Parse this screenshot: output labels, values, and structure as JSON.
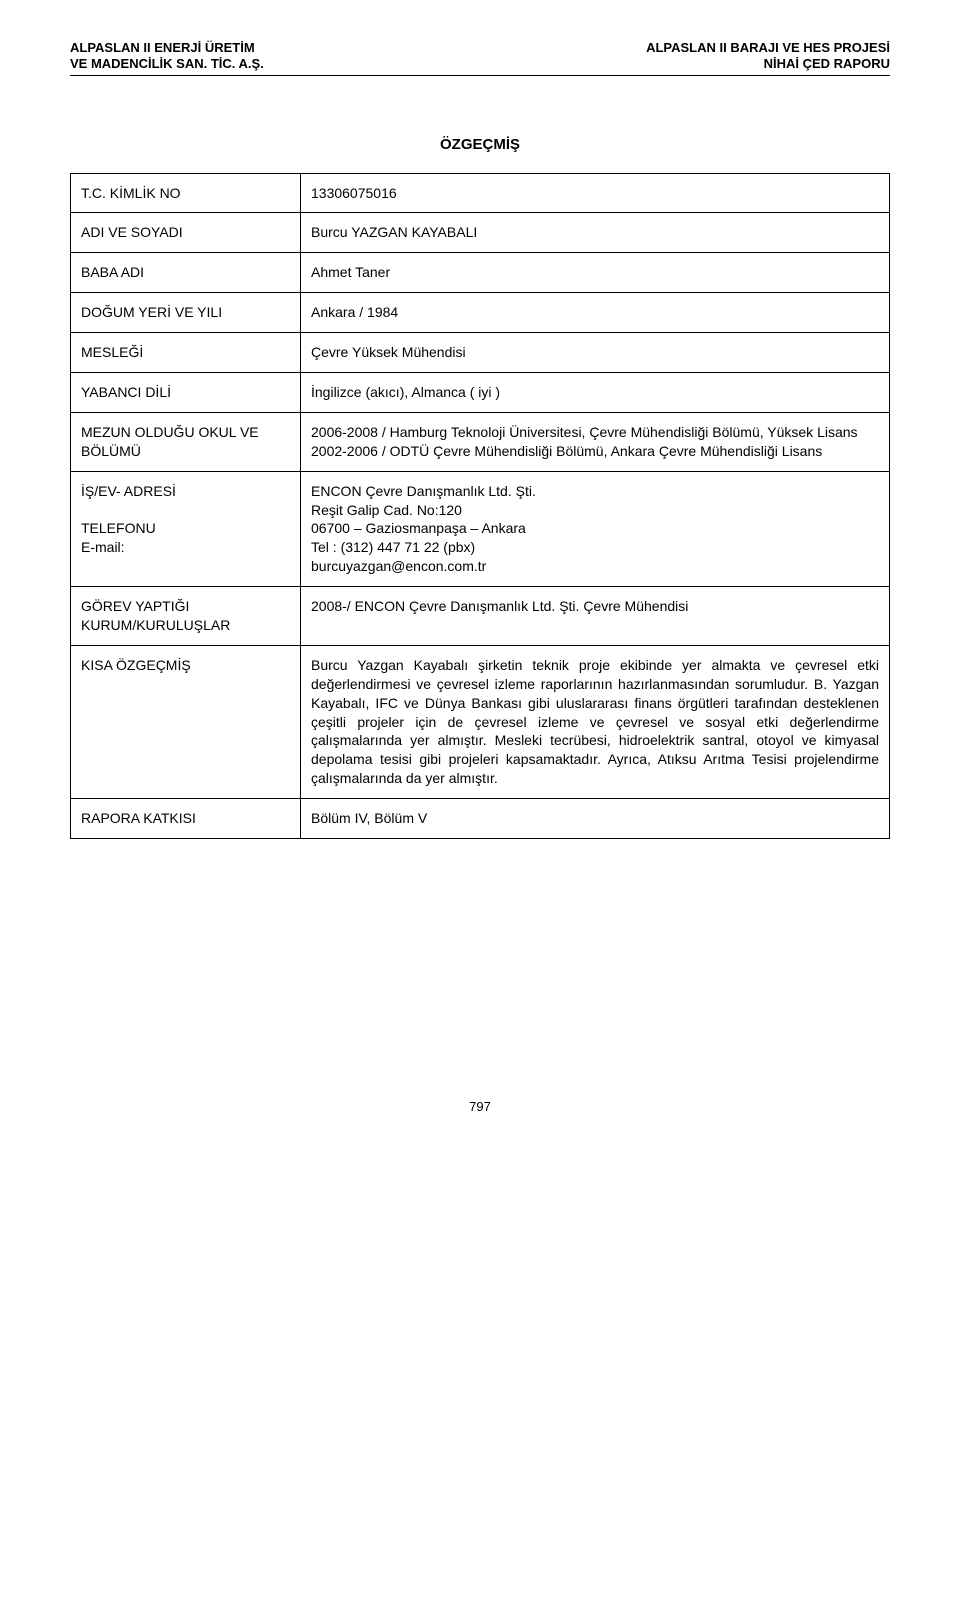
{
  "header": {
    "left_line1": "ALPASLAN II ENERJİ ÜRETİM",
    "left_line2": "VE MADENCİLİK SAN. TİC. A.Ş.",
    "right_line1": "ALPASLAN II BARAJI VE HES PROJESİ",
    "right_line2": "NİHAİ ÇED RAPORU"
  },
  "title": "ÖZGEÇMİŞ",
  "rows": {
    "tc_label": "T.C. KİMLİK NO",
    "tc_value": "13306075016",
    "name_label": "ADI VE SOYADI",
    "name_value": "Burcu YAZGAN KAYABALI",
    "father_label": "BABA ADI",
    "father_value": "Ahmet Taner",
    "birth_label": "DOĞUM YERİ VE YILI",
    "birth_value": "Ankara / 1984",
    "job_label": "MESLEĞİ",
    "job_value": "Çevre Yüksek Mühendisi",
    "lang_label": "YABANCI DİLİ",
    "lang_value": "İngilizce (akıcı), Almanca ( iyi )",
    "edu_label": "MEZUN OLDUĞU OKUL VE BÖLÜMÜ",
    "edu_value": "2006-2008 / Hamburg Teknoloji Üniversitesi, Çevre Mühendisliği Bölümü, Yüksek Lisans\n2002-2006 / ODTÜ Çevre Mühendisliği Bölümü, Ankara Çevre Mühendisliği Lisans",
    "addr_label": "İŞ/EV- ADRESİ\n\nTELEFONU\nE-mail:",
    "addr_value": "ENCON Çevre Danışmanlık Ltd. Şti.\nReşit Galip Cad. No:120\n06700 – Gaziosmanpaşa – Ankara\nTel : (312) 447 71 22 (pbx)\nburcuyazgan@encon.com.tr",
    "emp_label": "GÖREV YAPTIĞI KURUM/KURULUŞLAR",
    "emp_value": "2008-/ ENCON Çevre Danışmanlık Ltd. Şti. Çevre Mühendisi",
    "summary_label": "KISA ÖZGEÇMİŞ",
    "summary_value": "Burcu Yazgan Kayabalı şirketin teknik proje ekibinde yer almakta ve çevresel etki değerlendirmesi ve çevresel izleme raporlarının hazırlanmasından sorumludur. B. Yazgan Kayabalı, IFC ve Dünya Bankası gibi uluslararası finans örgütleri tarafından desteklenen çeşitli projeler için de çevresel izleme ve çevresel ve sosyal etki değerlendirme çalışmalarında yer almıştır. Mesleki tecrübesi, hidroelektrik santral, otoyol ve kimyasal depolama tesisi gibi projeleri kapsamaktadır. Ayrıca, Atıksu Arıtma Tesisi projelendirme çalışmalarında da yer almıştır.",
    "contrib_label": "RAPORA KATKISI",
    "contrib_value": "Bölüm IV, Bölüm V"
  },
  "page_number": "797"
}
